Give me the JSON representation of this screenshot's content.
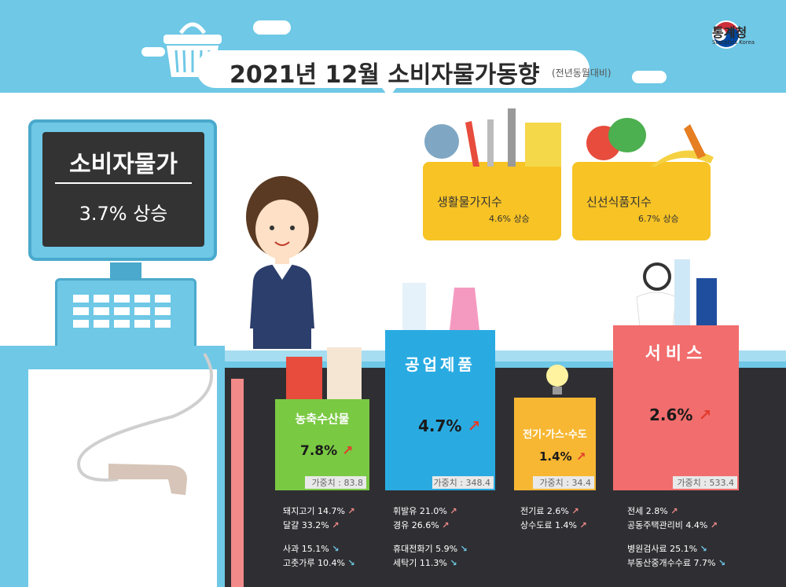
{
  "header": {
    "title": "2021년  12월 소비자물가동향",
    "title_note": "(전년동월대비)",
    "agency": "통계청",
    "agency_en": "Statistics Korea"
  },
  "cpi": {
    "label": "소비자물가",
    "value": "3.7% 상승"
  },
  "baskets": [
    {
      "label": "생활물가지수",
      "value": "4.6% 상승"
    },
    {
      "label": "신선식품지수",
      "value": "6.7% 상승"
    }
  ],
  "categories": [
    {
      "name": "농축수산물",
      "rate": "7.8%",
      "weight": "가중치 : 83.8",
      "items_up": [
        "돼지고기 14.7%",
        "달걀 33.2%"
      ],
      "items_down": [
        "사과 15.1%",
        "고춧가루 10.4%"
      ]
    },
    {
      "name": "공업제품",
      "rate": "4.7%",
      "weight": "가중치 : 348.4",
      "items_up": [
        "휘발유 21.0%",
        "경유 26.6%"
      ],
      "items_down": [
        "휴대전화기 5.9%",
        "세탁기 11.3%"
      ]
    },
    {
      "name": "전기·가스·수도",
      "rate": "1.4%",
      "weight": "가중치 : 34.4",
      "items_up": [
        "전기료 2.6%",
        "상수도료 1.4%"
      ],
      "items_down": []
    },
    {
      "name": "서비스",
      "rate": "2.6%",
      "weight": "가중치 : 533.4",
      "items_up": [
        "전세 2.8%",
        "공동주택관리비 4.4%"
      ],
      "items_down": [
        "병원검사료 25.1%",
        "부동산중개수수료 7.7%"
      ]
    }
  ],
  "glyphs": {
    "up": "↗",
    "down": "↘"
  },
  "colors": {
    "sky": "#6ec8e6",
    "agri": "#7ac943",
    "industrial": "#29abe2",
    "utilities": "#f7b733",
    "service": "#f26d6d",
    "board": "#2f2f33",
    "basket": "#f7c325"
  }
}
